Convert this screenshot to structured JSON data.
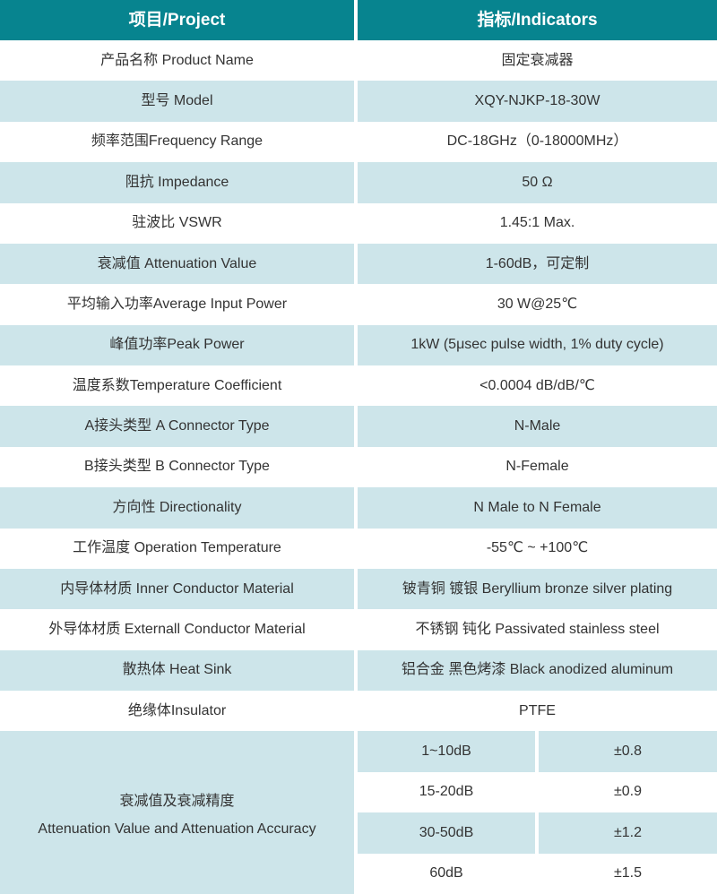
{
  "header": {
    "project": "项目/Project",
    "indicators": "指标/Indicators"
  },
  "rows": [
    {
      "project": "产品名称 Product Name",
      "indicator": "固定衰减器"
    },
    {
      "project": "型号 Model",
      "indicator": "XQY-NJKP-18-30W"
    },
    {
      "project": "频率范围Frequency Range",
      "indicator": "DC-18GHz（0-18000MHz）"
    },
    {
      "project": "阻抗 Impedance",
      "indicator": "50 Ω"
    },
    {
      "project": "驻波比 VSWR",
      "indicator": "1.45:1 Max."
    },
    {
      "project": "衰减值 Attenuation Value",
      "indicator": "1-60dB，可定制"
    },
    {
      "project": "平均输入功率Average Input Power",
      "indicator": "30 W@25℃"
    },
    {
      "project": "峰值功率Peak Power",
      "indicator": "1kW (5μsec pulse width, 1% duty cycle)"
    },
    {
      "project": "温度系数Temperature Coefficient",
      "indicator": "<0.0004 dB/dB/℃"
    },
    {
      "project": "A接头类型 A Connector Type",
      "indicator": "N-Male"
    },
    {
      "project": "B接头类型 B Connector Type",
      "indicator": "N-Female"
    },
    {
      "project": "方向性 Directionality",
      "indicator": "N Male to N Female"
    },
    {
      "project": "工作温度 Operation Temperature",
      "indicator": "-55℃ ~ +100℃"
    },
    {
      "project": "内导体材质 Inner Conductor Material",
      "indicator": "铍青铜 镀银 Beryllium bronze silver plating"
    },
    {
      "project": "外导体材质 Externall Conductor Material",
      "indicator": "不锈钢 钝化 Passivated stainless steel"
    },
    {
      "project": "散热体 Heat Sink",
      "indicator": "铝合金 黑色烤漆 Black anodized aluminum"
    },
    {
      "project": "绝缘体Insulator",
      "indicator": "PTFE"
    }
  ],
  "accuracy": {
    "label_zh": "衰减值及衰减精度",
    "label_en": "Attenuation Value and Attenuation Accuracy",
    "rows": [
      {
        "range": "1~10dB",
        "accuracy": "±0.8"
      },
      {
        "range": "15-20dB",
        "accuracy": "±0.9"
      },
      {
        "range": "30-50dB",
        "accuracy": "±1.2"
      },
      {
        "range": "60dB",
        "accuracy": "±1.5"
      }
    ]
  },
  "colors": {
    "header_bg": "#07848f",
    "header_text": "#ffffff",
    "alt_bg": "#cde5ea",
    "text": "#333333",
    "divider": "#ffffff"
  }
}
